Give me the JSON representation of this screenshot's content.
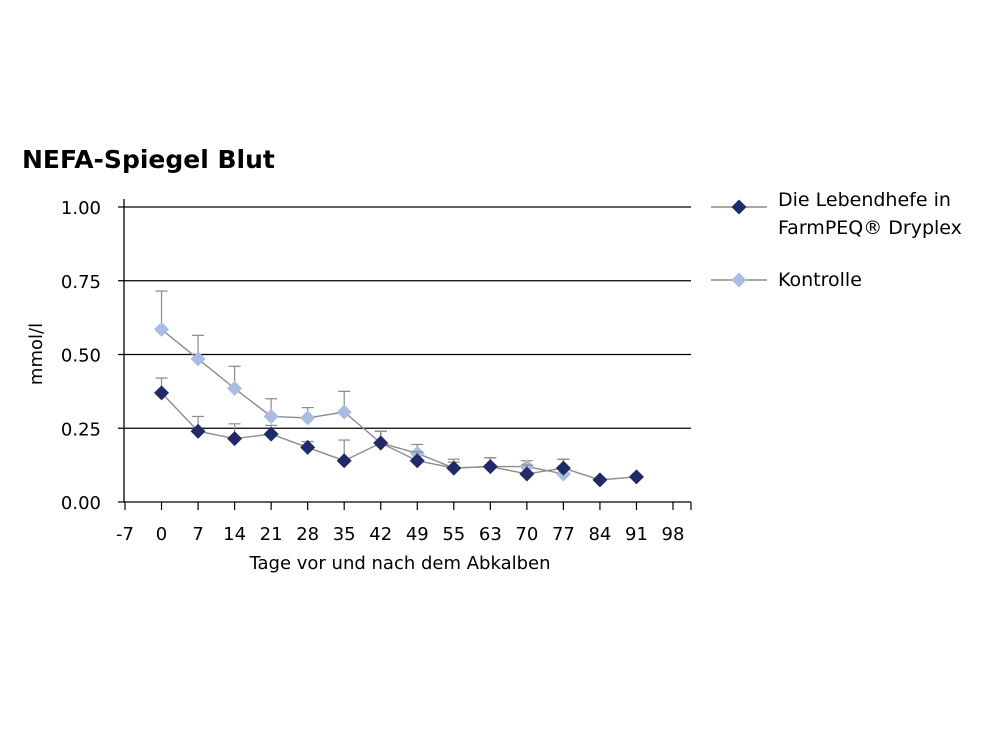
{
  "chart_data": {
    "type": "line",
    "title": "NEFA-Spiegel Blut",
    "xlabel": "Tage vor und nach dem Abkalben",
    "ylabel": "mmol/l",
    "x_ticks": [
      "-7",
      "0",
      "7",
      "14",
      "21",
      "28",
      "35",
      "42",
      "49",
      "55",
      "63",
      "70",
      "77",
      "84",
      "91",
      "98"
    ],
    "y_ticks": [
      "1.00",
      "0.75",
      "0.50",
      "0.25",
      "0.00"
    ],
    "ylim": [
      0,
      1
    ],
    "grid": "horizontal",
    "legend_position": "right",
    "series": [
      {
        "name": "Die Lebendhefe in FarmPEQ® Dryplex",
        "name_lines": [
          "Die Lebendhefe in",
          "FarmPEQ® Dryplex"
        ],
        "color": "#1f2a66",
        "x": [
          "0",
          "7",
          "14",
          "21",
          "28",
          "35",
          "42",
          "49",
          "55",
          "63",
          "70",
          "77",
          "84",
          "91"
        ],
        "values": [
          0.37,
          0.24,
          0.215,
          0.23,
          0.185,
          0.14,
          0.2,
          0.14,
          0.115,
          0.12,
          0.095,
          0.115,
          0.075,
          0.085
        ],
        "error": [
          0.05,
          0.05,
          0.05,
          0.03,
          0.02,
          0.07,
          0.04,
          0.03,
          0.03,
          0.03,
          0.03,
          0.03,
          0.0,
          0.0
        ]
      },
      {
        "name": "Kontrolle",
        "name_lines": [
          "Kontrolle"
        ],
        "color": "#a9bde3",
        "x": [
          "0",
          "7",
          "14",
          "21",
          "28",
          "35",
          "42",
          "49",
          "55",
          "63",
          "70",
          "77"
        ],
        "values": [
          0.585,
          0.485,
          0.385,
          0.29,
          0.285,
          0.305,
          0.2,
          0.165,
          0.115,
          0.12,
          0.12,
          0.095
        ],
        "error": [
          0.13,
          0.08,
          0.075,
          0.06,
          0.035,
          0.07,
          0.04,
          0.03,
          0.02,
          0.03,
          0.02,
          0.05
        ]
      }
    ]
  }
}
